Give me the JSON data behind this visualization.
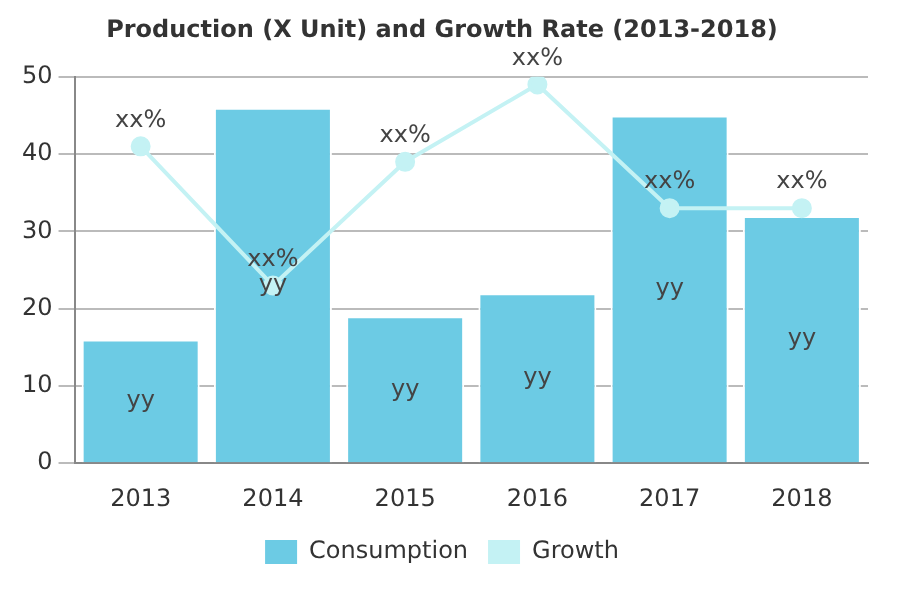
{
  "chart_data": {
    "type": "bar",
    "title": "Production (X Unit) and Growth Rate (2013-2018)",
    "categories": [
      "2013",
      "2014",
      "2015",
      "2016",
      "2017",
      "2018"
    ],
    "series": [
      {
        "name": "Consumption",
        "color": "#6ccbe4",
        "values": [
          16,
          46,
          19,
          22,
          45,
          32
        ],
        "value_labels": [
          "yy",
          "yy",
          "yy",
          "yy",
          "yy",
          "yy"
        ]
      },
      {
        "name": "Growth",
        "type": "line",
        "color": "#c4f2f4",
        "marker": "circle",
        "values": [
          41,
          23,
          39,
          49,
          33,
          33
        ],
        "value_labels": [
          "xx%",
          "xx%",
          "xx%",
          "xx%",
          "xx%",
          "xx%"
        ]
      }
    ],
    "ylim": [
      0,
      50
    ],
    "yticks": [
      0,
      10,
      20,
      30,
      40,
      50
    ],
    "grid": "y",
    "legend": "bottom"
  }
}
